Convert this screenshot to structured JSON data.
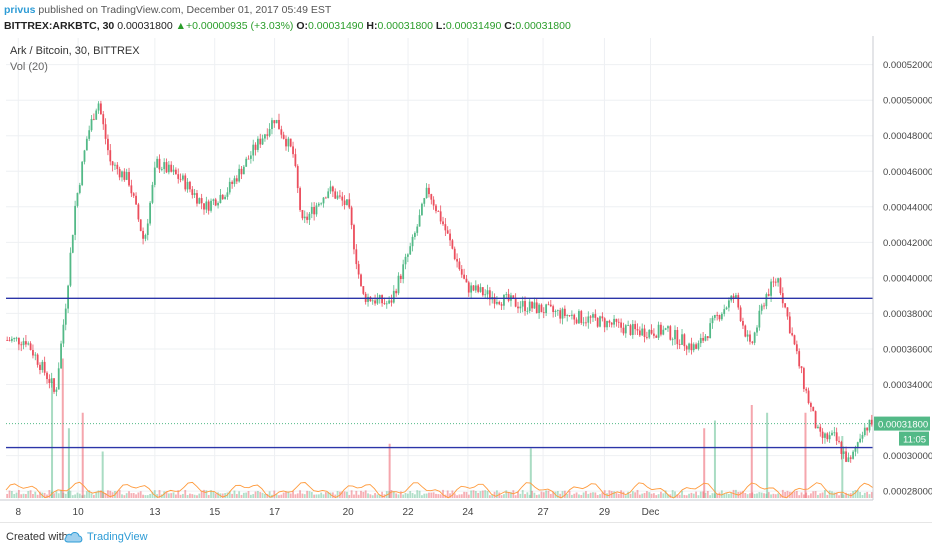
{
  "header": {
    "author": "privus",
    "published_text": " published on TradingView.com, December 01, 2017 05:49 EST",
    "symbol": "BITTREX:ARKBTC, 30",
    "price": "0.00031800",
    "change_arrow": "▲",
    "change": "+0.00000935 (+3.03%)",
    "o_label": "O:",
    "o_value": "0.00031490",
    "h_label": "H:",
    "h_value": "0.00031800",
    "l_label": "L:",
    "l_value": "0.00031490",
    "c_label": "C:",
    "c_value": "0.00031800"
  },
  "footer": {
    "created_with": "Created with",
    "brand": "TradingView"
  },
  "colors": {
    "up": "#53b987",
    "down": "#eb4d5c",
    "hline": "#2b35a8",
    "accent": "#2e9cd6",
    "last_price_bg": "#53b987"
  },
  "chart_data": {
    "type": "candlestick",
    "title": "Ark / Bitcoin, 30, BITTREX",
    "volume_label": "Vol (20)",
    "x_tick_labels": [
      "8",
      "10",
      "13",
      "15",
      "17",
      "20",
      "22",
      "24",
      "27",
      "29",
      "Dec"
    ],
    "y_tick_labels": [
      "0.00052000",
      "0.00050000",
      "0.00048000",
      "0.00046000",
      "0.00044000",
      "0.00042000",
      "0.00040000",
      "0.00038000",
      "0.00036000",
      "0.00034000",
      "0.00030000",
      "0.00028000"
    ],
    "ylim": [
      0.000275,
      0.000535
    ],
    "last_price": "0.00031800",
    "last_price_value": 0.000318,
    "time_label": "11:05",
    "horizontal_lines": [
      0.0003885,
      0.0003045
    ],
    "grid": true,
    "price_path": [
      {
        "t": 0.0,
        "p": 0.000365
      },
      {
        "t": 1.3,
        "p": 0.000365
      },
      {
        "t": 3.0,
        "p": 0.00034
      },
      {
        "t": 3.2,
        "p": 0.000333
      },
      {
        "t": 3.9,
        "p": 0.000386
      },
      {
        "t": 4.5,
        "p": 0.00044
      },
      {
        "t": 5.3,
        "p": 0.00048
      },
      {
        "t": 6.0,
        "p": 0.0005
      },
      {
        "t": 6.8,
        "p": 0.000465
      },
      {
        "t": 8.0,
        "p": 0.000455
      },
      {
        "t": 9.0,
        "p": 0.00042
      },
      {
        "t": 9.8,
        "p": 0.000465
      },
      {
        "t": 11.5,
        "p": 0.000455
      },
      {
        "t": 13.0,
        "p": 0.00044
      },
      {
        "t": 14.5,
        "p": 0.00045
      },
      {
        "t": 16.0,
        "p": 0.00047
      },
      {
        "t": 17.5,
        "p": 0.00049
      },
      {
        "t": 18.7,
        "p": 0.00047
      },
      {
        "t": 19.3,
        "p": 0.00043
      },
      {
        "t": 21.0,
        "p": 0.00045
      },
      {
        "t": 22.3,
        "p": 0.00044
      },
      {
        "t": 23.2,
        "p": 0.00039
      },
      {
        "t": 25.0,
        "p": 0.000385
      },
      {
        "t": 26.5,
        "p": 0.00042
      },
      {
        "t": 27.5,
        "p": 0.00045
      },
      {
        "t": 28.5,
        "p": 0.00043
      },
      {
        "t": 30.0,
        "p": 0.000395
      },
      {
        "t": 31.5,
        "p": 0.00039
      },
      {
        "t": 33.5,
        "p": 0.000385
      },
      {
        "t": 36.0,
        "p": 0.00038
      },
      {
        "t": 39.0,
        "p": 0.000375
      },
      {
        "t": 41.0,
        "p": 0.00037
      },
      {
        "t": 43.0,
        "p": 0.00037
      },
      {
        "t": 45.0,
        "p": 0.00036
      },
      {
        "t": 46.5,
        "p": 0.00038
      },
      {
        "t": 47.5,
        "p": 0.00039
      },
      {
        "t": 48.5,
        "p": 0.00036
      },
      {
        "t": 49.5,
        "p": 0.00039
      },
      {
        "t": 50.3,
        "p": 0.0004
      },
      {
        "t": 51.0,
        "p": 0.000375
      },
      {
        "t": 52.0,
        "p": 0.00034
      },
      {
        "t": 53.0,
        "p": 0.00031
      },
      {
        "t": 54.0,
        "p": 0.00031
      },
      {
        "t": 55.0,
        "p": 0.000295
      },
      {
        "t": 55.8,
        "p": 0.000315
      },
      {
        "t": 56.5,
        "p": 0.000318
      }
    ],
    "volume_spikes": [
      {
        "t": 3.0,
        "v": 0.75
      },
      {
        "t": 3.7,
        "v": 0.9
      },
      {
        "t": 4.1,
        "v": 0.45
      },
      {
        "t": 5.0,
        "v": 0.55
      },
      {
        "t": 6.3,
        "v": 0.3
      },
      {
        "t": 25.0,
        "v": 0.35
      },
      {
        "t": 34.2,
        "v": 0.32
      },
      {
        "t": 45.5,
        "v": 0.45
      },
      {
        "t": 46.2,
        "v": 0.5
      },
      {
        "t": 48.6,
        "v": 0.6
      },
      {
        "t": 49.6,
        "v": 0.55
      },
      {
        "t": 52.1,
        "v": 0.55
      },
      {
        "t": 54.5,
        "v": 0.4
      }
    ]
  }
}
